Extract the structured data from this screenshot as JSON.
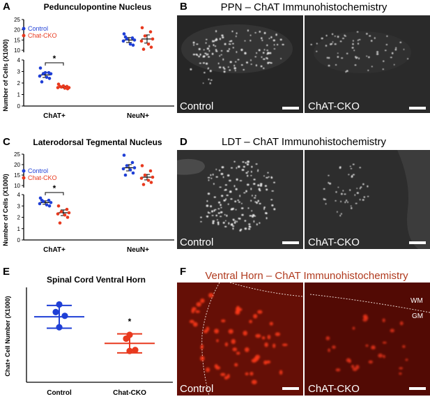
{
  "panels": {
    "A": {
      "letter": "A",
      "title": "Pedunculopontine Nucleus",
      "ylabel": "Number of Cells (X1000)"
    },
    "B": {
      "letter": "B",
      "title": "PPN – ChAT Immunohistochemistry",
      "left_label": "Control",
      "right_label": "ChAT-CKO"
    },
    "C": {
      "letter": "C",
      "title": "Laterodorsal Tegmental Nucleus",
      "ylabel": "Number of Cells (X1000)"
    },
    "D": {
      "letter": "D",
      "title": "LDT – ChAT Immunohistochemistry",
      "left_label": "Control",
      "right_label": "ChAT-CKO"
    },
    "E": {
      "letter": "E",
      "title": "Spinal Cord Ventral Horn",
      "ylabel": "Chat+ Cell Number (X1000)"
    },
    "F": {
      "letter": "F",
      "title": "Ventral Horn – ChAT Immunohistochemistry",
      "left_label": "Control",
      "right_label": "ChAT-CKO",
      "wm": "WM",
      "gm": "GM"
    }
  },
  "colors": {
    "control": "#1f3fd6",
    "cko": "#e8391e",
    "micrograph_bg": "#2b2b2b",
    "red_bg": "#5a0c05"
  },
  "chart_data": [
    {
      "id": "A",
      "type": "scatter",
      "title": "Pedunculopontine Nucleus",
      "ylabel": "Number of Cells (X1000)",
      "categories": [
        "ChAT+",
        "NeuN+"
      ],
      "legend": [
        "Control",
        "Chat-CKO"
      ],
      "legend_position": "top-left",
      "axis_break": true,
      "y_lower": {
        "ticks": [
          0,
          1,
          2,
          3,
          4
        ],
        "ylim": [
          0,
          4
        ]
      },
      "y_upper": {
        "ticks": [
          10,
          15,
          20,
          25
        ],
        "ylim": [
          9,
          25
        ]
      },
      "significance": {
        "group": "ChAT+",
        "text": "*"
      },
      "series": [
        {
          "name": "Control",
          "group": "ChAT+",
          "mean": 2.7,
          "sem": 0.22,
          "values": [
            3.3,
            2.9,
            2.8,
            2.8,
            2.6,
            2.5,
            2.4,
            2.1,
            2.9
          ]
        },
        {
          "name": "Chat-CKO",
          "group": "ChAT+",
          "mean": 1.65,
          "sem": 0.07,
          "values": [
            1.9,
            1.7,
            1.65,
            1.6,
            1.6,
            1.55,
            1.5,
            1.7,
            1.75
          ]
        },
        {
          "name": "Control",
          "group": "NeuN+",
          "mean": 15.0,
          "sem": 1.2,
          "values": [
            18,
            16,
            15.5,
            15,
            14.5,
            13,
            12.5,
            16.5
          ]
        },
        {
          "name": "Chat-CKO",
          "group": "NeuN+",
          "mean": 15.5,
          "sem": 2.0,
          "values": [
            21,
            19,
            17,
            15.5,
            14.5,
            13,
            11.5,
            10.5
          ]
        }
      ]
    },
    {
      "id": "C",
      "type": "scatter",
      "title": "Laterodorsal Tegmental Nucleus",
      "ylabel": "Number of Cells (X1000)",
      "categories": [
        "ChAT+",
        "NeuN+"
      ],
      "legend": [
        "Control",
        "Chat-CKO"
      ],
      "legend_position": "top-left",
      "axis_break": true,
      "y_lower": {
        "ticks": [
          0,
          1,
          2,
          3,
          4
        ],
        "ylim": [
          0,
          4
        ]
      },
      "y_upper": {
        "ticks": [
          10,
          15,
          20,
          25
        ],
        "ylim": [
          9,
          25
        ]
      },
      "significance": {
        "group": "ChAT+",
        "text": "*"
      },
      "series": [
        {
          "name": "Control",
          "group": "ChAT+",
          "mean": 3.3,
          "sem": 0.15,
          "values": [
            3.7,
            3.5,
            3.4,
            3.3,
            3.2,
            3.1,
            3.0,
            3.5
          ]
        },
        {
          "name": "Chat-CKO",
          "group": "ChAT+",
          "mean": 2.4,
          "sem": 0.25,
          "values": [
            3.0,
            2.7,
            2.5,
            2.4,
            2.3,
            2.2,
            2.0,
            1.5
          ]
        },
        {
          "name": "Control",
          "group": "NeuN+",
          "mean": 18.5,
          "sem": 1.5,
          "values": [
            24.5,
            21,
            19.5,
            18.5,
            18,
            17.5,
            16,
            15
          ]
        },
        {
          "name": "Chat-CKO",
          "group": "NeuN+",
          "mean": 14.0,
          "sem": 1.3,
          "values": [
            19.5,
            17,
            15,
            14,
            13.5,
            12.5,
            11.5,
            10.5
          ]
        }
      ]
    },
    {
      "id": "E",
      "type": "scatter",
      "title": "Spinal Cord Ventral Horn",
      "ylabel": "Chat+ Cell Number (X1000)",
      "categories": [
        "Control",
        "Chat-CKO"
      ],
      "ylim": [
        0,
        5
      ],
      "y_ticks": [],
      "significance": {
        "group": "Chat-CKO",
        "text": "*"
      },
      "series": [
        {
          "name": "Control",
          "mean": 3.45,
          "sd": 0.6,
          "values": [
            4.1,
            3.7,
            3.5,
            2.9
          ]
        },
        {
          "name": "Chat-CKO",
          "mean": 2.05,
          "sd": 0.5,
          "values": [
            2.5,
            2.3,
            1.7,
            1.65
          ]
        }
      ]
    }
  ]
}
